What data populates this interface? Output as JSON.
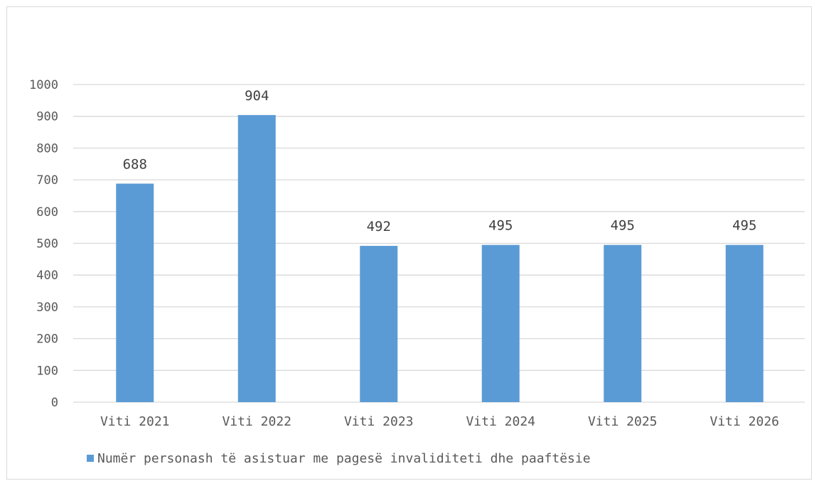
{
  "chart_data": {
    "type": "bar",
    "categories": [
      "Viti 2021",
      "Viti 2022",
      "Viti 2023",
      "Viti 2024",
      "Viti 2025",
      "Viti 2026"
    ],
    "series": [
      {
        "name": "Numër personash të asistuar me pagesë invaliditeti dhe paaftësie",
        "values": [
          688,
          904,
          492,
          495,
          495,
          495
        ],
        "color": "#5b9bd5"
      }
    ],
    "data_labels": [
      "688",
      "904",
      "492",
      "495",
      "495",
      "495"
    ],
    "yticks": [
      0,
      100,
      200,
      300,
      400,
      500,
      600,
      700,
      800,
      900,
      1000
    ],
    "ylim": [
      0,
      1000
    ],
    "grid": true,
    "legend_position": "bottom",
    "gridline_color": "#d9d9d9",
    "axis_label_color": "#595959"
  }
}
